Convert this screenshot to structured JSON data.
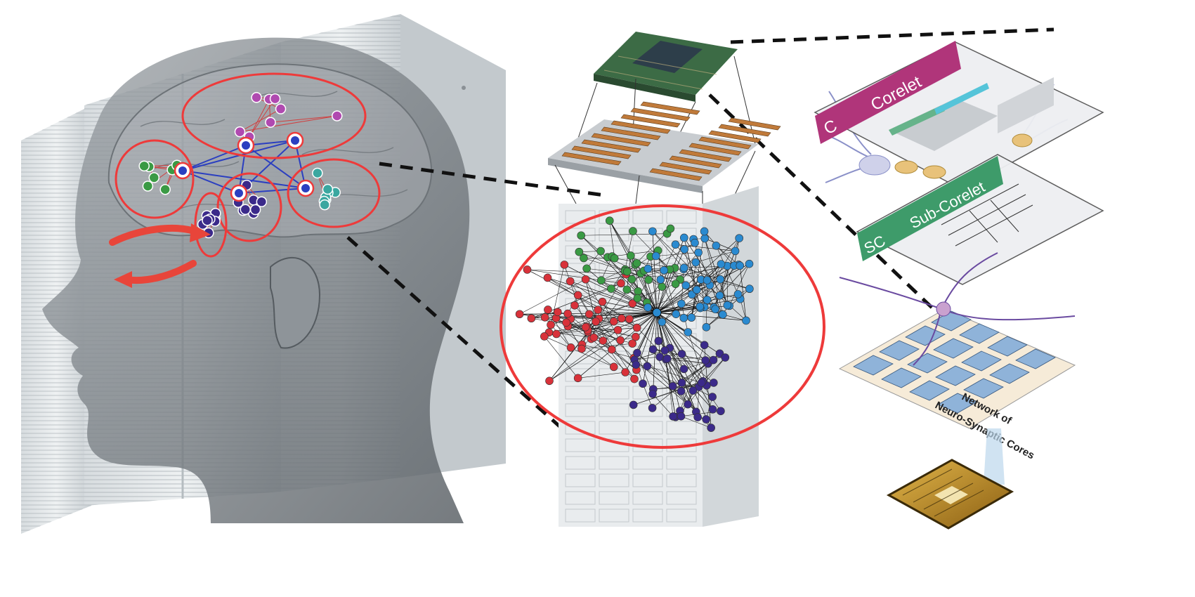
{
  "labels": {
    "corelet_prefix": "C",
    "corelet": "Corelet",
    "subcorelet_prefix": "SC",
    "subcorelet": "Sub-Corelet",
    "network_line1": "Network of",
    "network_line2": "Neuro-Synaptic Cores"
  },
  "colors": {
    "red_cluster": "#d8323a",
    "green_cluster": "#3a9a44",
    "blue_cluster": "#2a8ad0",
    "purple_cluster": "#3b2a8a",
    "violet_cluster": "#b04ab0",
    "teal_cluster": "#3aa7a0",
    "highlight_ring": "#ee3a3a",
    "hub_link": "#2b3fc0",
    "corelet_bar": "#b0357a",
    "subcorelet_bar": "#3e9b6a"
  },
  "icons": {
    "head": "head-silhouette-icon",
    "servers": "server-rack-icon",
    "cpu": "cpu-chip-icon",
    "board": "server-board-icon",
    "neuron": "neuron-icon",
    "chip": "neuromorphic-chip-icon"
  }
}
